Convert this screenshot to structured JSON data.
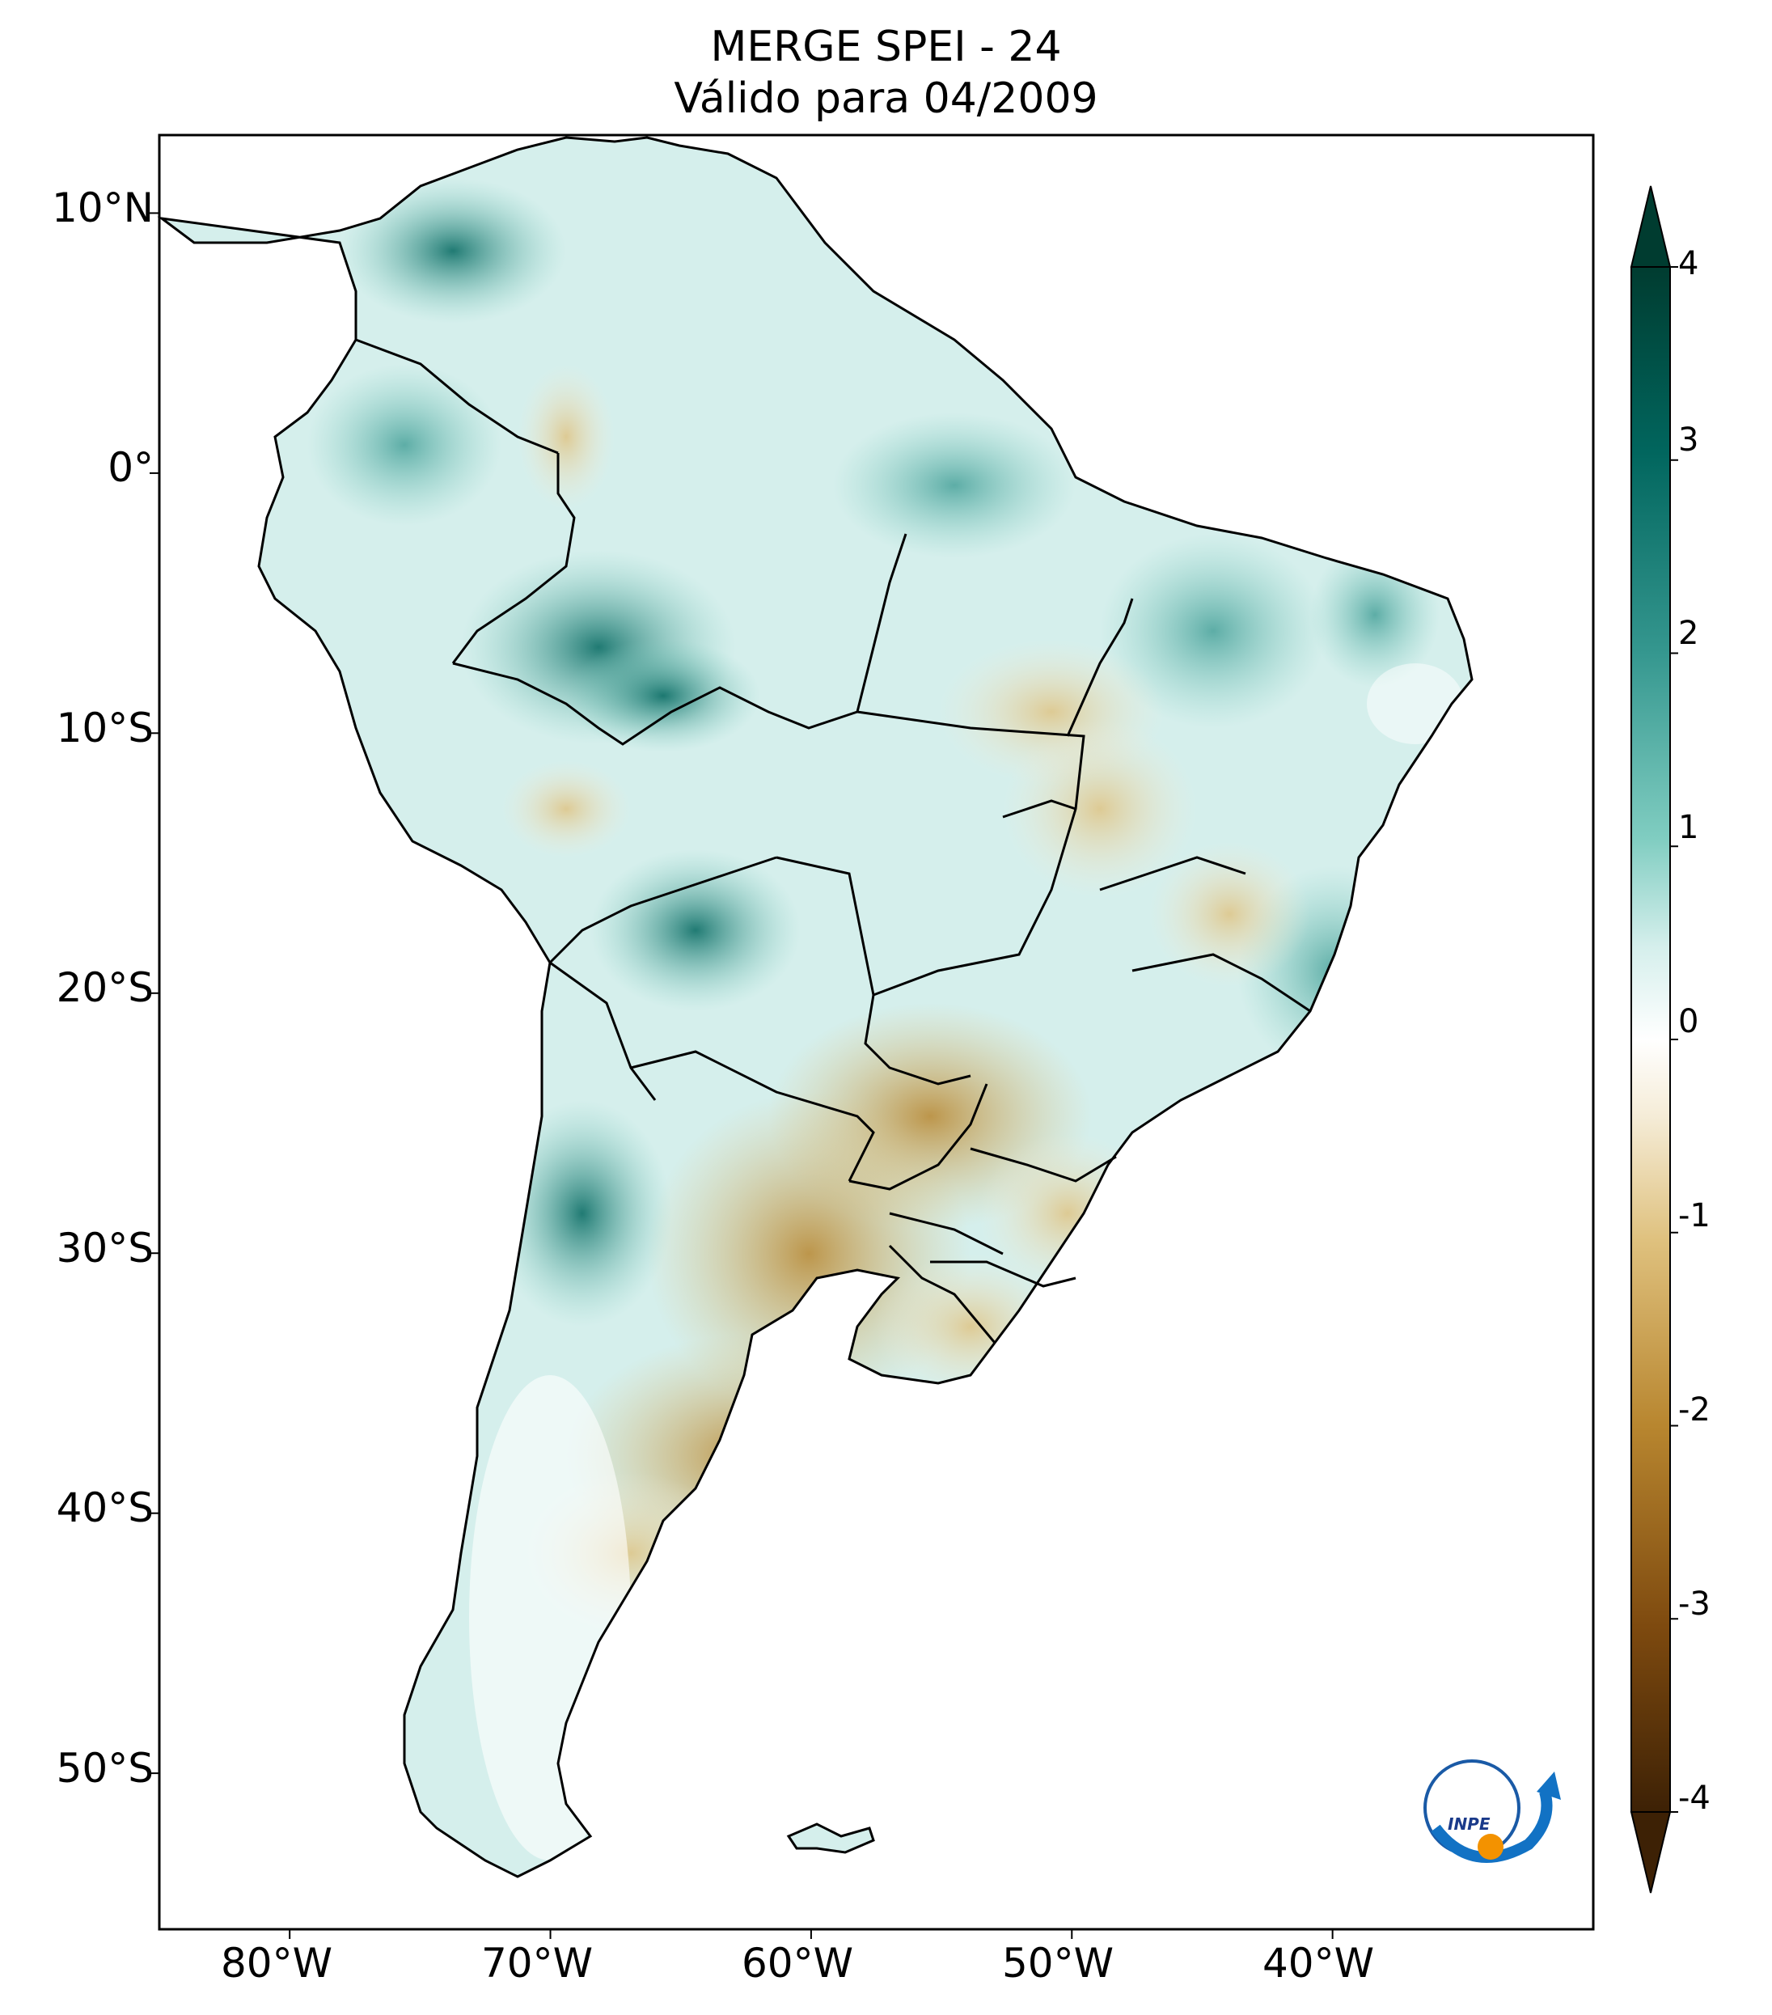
{
  "title": {
    "line1": "MERGE   SPEI - 24",
    "line2": "Válido para 04/2009"
  },
  "map": {
    "lat_ticks": [
      {
        "value": 10,
        "label": "10°N"
      },
      {
        "value": 0,
        "label": "0°"
      },
      {
        "value": -10,
        "label": "10°S"
      },
      {
        "value": -20,
        "label": "20°S"
      },
      {
        "value": -30,
        "label": "30°S"
      },
      {
        "value": -40,
        "label": "40°S"
      },
      {
        "value": -50,
        "label": "50°S"
      }
    ],
    "lon_ticks": [
      {
        "value": -80,
        "label": "80°W"
      },
      {
        "value": -70,
        "label": "70°W"
      },
      {
        "value": -60,
        "label": "60°W"
      },
      {
        "value": -50,
        "label": "50°W"
      },
      {
        "value": -40,
        "label": "40°W"
      }
    ],
    "lon_range": [
      -85,
      -30
    ],
    "lat_range": [
      -56,
      13
    ]
  },
  "colorbar": {
    "ticks": [
      "4",
      "3",
      "2",
      "1",
      "0",
      "-1",
      "-2",
      "-3",
      "-4"
    ],
    "min": -4,
    "max": 4,
    "colors": [
      "#3d2105",
      "#7e4a0f",
      "#b8862f",
      "#dfc17e",
      "#f5ecd7",
      "#ffffff",
      "#d5efec",
      "#80cdc1",
      "#35978f",
      "#01665e",
      "#003c30"
    ]
  },
  "logo": {
    "text": "INPE"
  }
}
